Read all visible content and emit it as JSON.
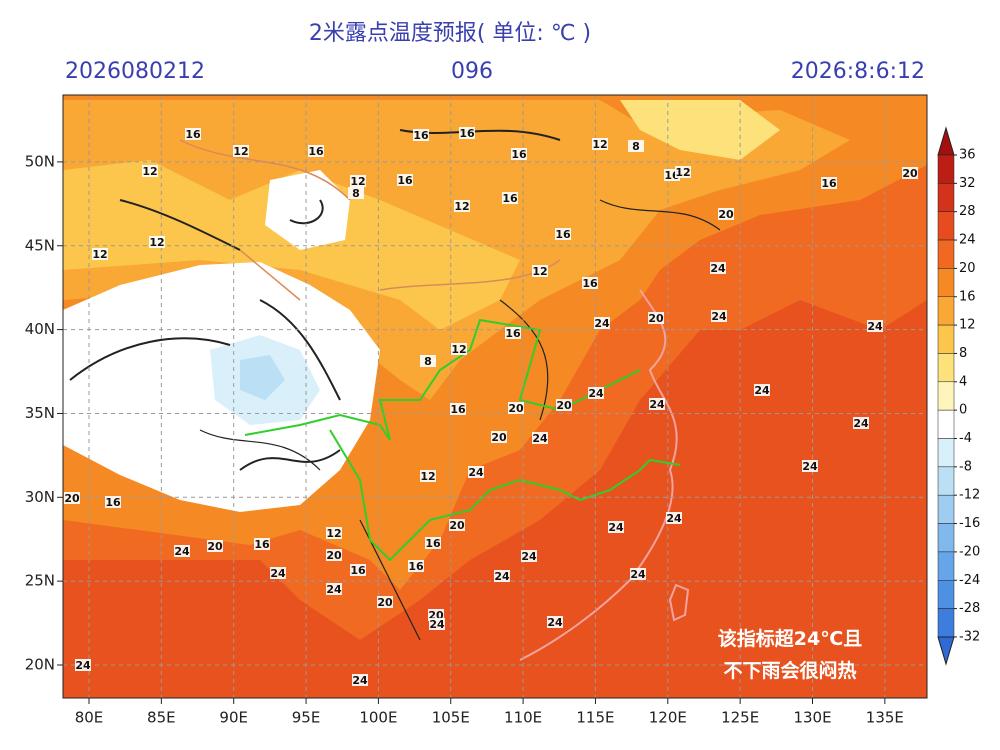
{
  "header": {
    "title": "2米露点温度预报( 单位: ℃ )",
    "init_time": "2026080212",
    "lead_hours": "096",
    "valid_time": "2026:8:6:12"
  },
  "map": {
    "lon_ticks": [
      {
        "value": 80,
        "label": "80E"
      },
      {
        "value": 85,
        "label": "85E"
      },
      {
        "value": 90,
        "label": "90E"
      },
      {
        "value": 95,
        "label": "95E"
      },
      {
        "value": 100,
        "label": "100E"
      },
      {
        "value": 105,
        "label": "105E"
      },
      {
        "value": 110,
        "label": "110E"
      },
      {
        "value": 115,
        "label": "115E"
      },
      {
        "value": 120,
        "label": "120E"
      },
      {
        "value": 125,
        "label": "125E"
      },
      {
        "value": 130,
        "label": "130E"
      },
      {
        "value": 135,
        "label": "135E"
      }
    ],
    "lat_ticks": [
      {
        "value": 20,
        "label": "20N"
      },
      {
        "value": 25,
        "label": "25N"
      },
      {
        "value": 30,
        "label": "30N"
      },
      {
        "value": 35,
        "label": "35N"
      },
      {
        "value": 40,
        "label": "40N"
      },
      {
        "value": 45,
        "label": "45N"
      },
      {
        "value": 50,
        "label": "50N"
      }
    ],
    "contour_labels": [
      16,
      12,
      16,
      12,
      12,
      16,
      8,
      12,
      16,
      16,
      16,
      12,
      8,
      16,
      12,
      16,
      20,
      20,
      16,
      16,
      12,
      16,
      12,
      12,
      24,
      24,
      20,
      24,
      24,
      16,
      12,
      8,
      16,
      20,
      20,
      24,
      24,
      24,
      24,
      24,
      20,
      24,
      12,
      24,
      20,
      16,
      24,
      24,
      20,
      16,
      12,
      20,
      16,
      20,
      24,
      24,
      16,
      16,
      24,
      24,
      24,
      24,
      20,
      20,
      24,
      24,
      24,
      24
    ],
    "annotation": [
      "该指标超24℃且",
      "不下雨会很闷热"
    ]
  },
  "colorbar": {
    "ticks": [
      36,
      32,
      28,
      24,
      20,
      16,
      12,
      8,
      4,
      0,
      -4,
      -8,
      -12,
      -16,
      -20,
      -24,
      -28,
      -32
    ],
    "colors": [
      "#a3100f",
      "#bc1d14",
      "#d3331a",
      "#e64c1d",
      "#f06822",
      "#f58a24",
      "#f9a735",
      "#fcc64c",
      "#fde27c",
      "#fff4bc",
      "#ffffff",
      "#d9eff9",
      "#bbdff5",
      "#9ecdf1",
      "#82b9ed",
      "#66a5e9",
      "#4e91e3",
      "#3c7ddd",
      "#2f6ad6"
    ]
  }
}
